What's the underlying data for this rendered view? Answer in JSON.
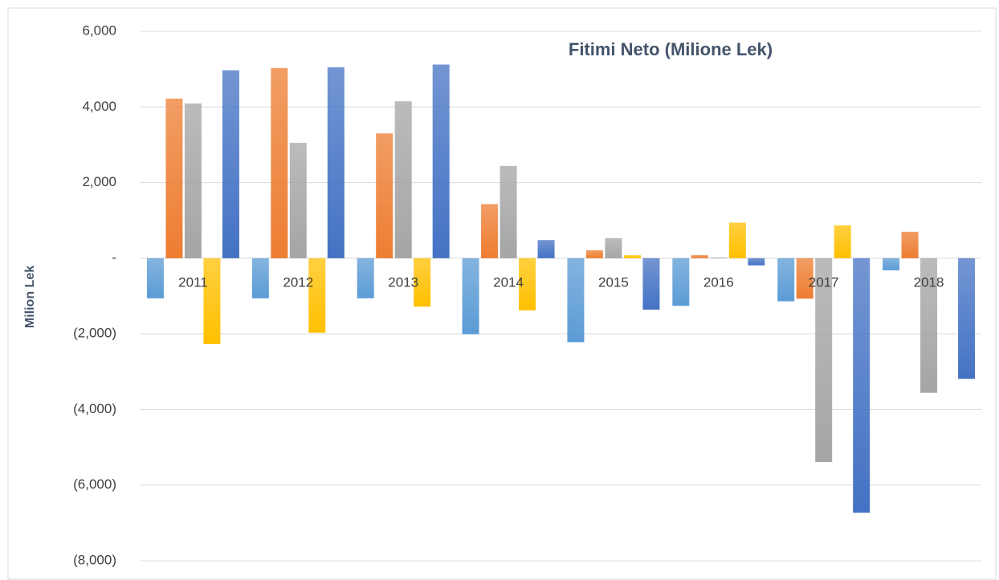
{
  "chart_data": {
    "type": "bar",
    "title": "Fitimi Neto (Milione Lek)",
    "y_label": "Milion Lek",
    "categories": [
      "2011",
      "2012",
      "2013",
      "2014",
      "2015",
      "2016",
      "2017",
      "2018"
    ],
    "series": [
      {
        "color": "#5b9bd5",
        "values": [
          -1060,
          -1060,
          -1060,
          -2010,
          -2220,
          -1260,
          -1140,
          -320
        ]
      },
      {
        "color": "#ed7d31",
        "values": [
          4220,
          5030,
          3300,
          1430,
          210,
          80,
          -1070,
          700
        ]
      },
      {
        "color": "#a5a5a5",
        "values": [
          4090,
          3050,
          4150,
          2440,
          530,
          20,
          -5390,
          -3560
        ]
      },
      {
        "color": "#ffc000",
        "values": [
          -2270,
          -1970,
          -1280,
          -1380,
          80,
          940,
          870,
          0
        ]
      },
      {
        "color": "#4472c4",
        "values": [
          4970,
          5050,
          5120,
          480,
          -1360,
          -190,
          -6730,
          -3190
        ]
      }
    ],
    "ylim": [
      -8000,
      6000
    ],
    "yticks": [
      {
        "value": -8000,
        "label": "(8,000)"
      },
      {
        "value": -6000,
        "label": "(6,000)"
      },
      {
        "value": -4000,
        "label": "(4,000)"
      },
      {
        "value": -2000,
        "label": "(2,000)"
      },
      {
        "value": 0,
        "label": "-"
      },
      {
        "value": 2000,
        "label": "2,000"
      },
      {
        "value": 4000,
        "label": "4,000"
      },
      {
        "value": 6000,
        "label": "6,000"
      }
    ],
    "grid": true
  }
}
